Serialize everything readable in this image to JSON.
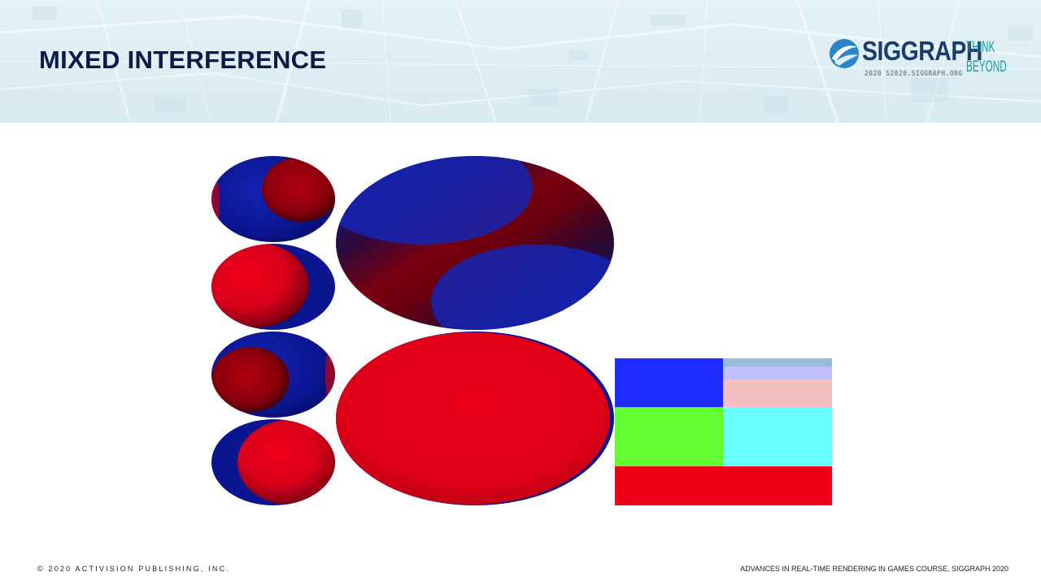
{
  "slide": {
    "title": "MIXED INTERFERENCE"
  },
  "logo": {
    "name": "SIGGRAPH",
    "subline": "2020  S2020.SIGGRAPH.ORG",
    "tagline_1": "THINK",
    "tagline_2": "BEYOND",
    "icon": "siggraph-swirl-icon"
  },
  "footer": {
    "copyright": "© 2020 ACTIVISION PUBLISHING, INC.",
    "course": "ADVANCES IN REAL-TIME RENDERING IN GAMES COURSE, SIGGRAPH 2020"
  },
  "colors": {
    "title": "#0d1a45",
    "positive": "#e60012",
    "negative": "#0a1aa0",
    "swatch_blue": "#1e2cff",
    "swatch_green": "#64ff32",
    "swatch_cyan": "#6affff",
    "swatch_red": "#ee0018",
    "swatch_pink": "#f5bfc0",
    "swatch_lavender": "#c0c0ff",
    "swatch_steel": "#96bcd8"
  }
}
